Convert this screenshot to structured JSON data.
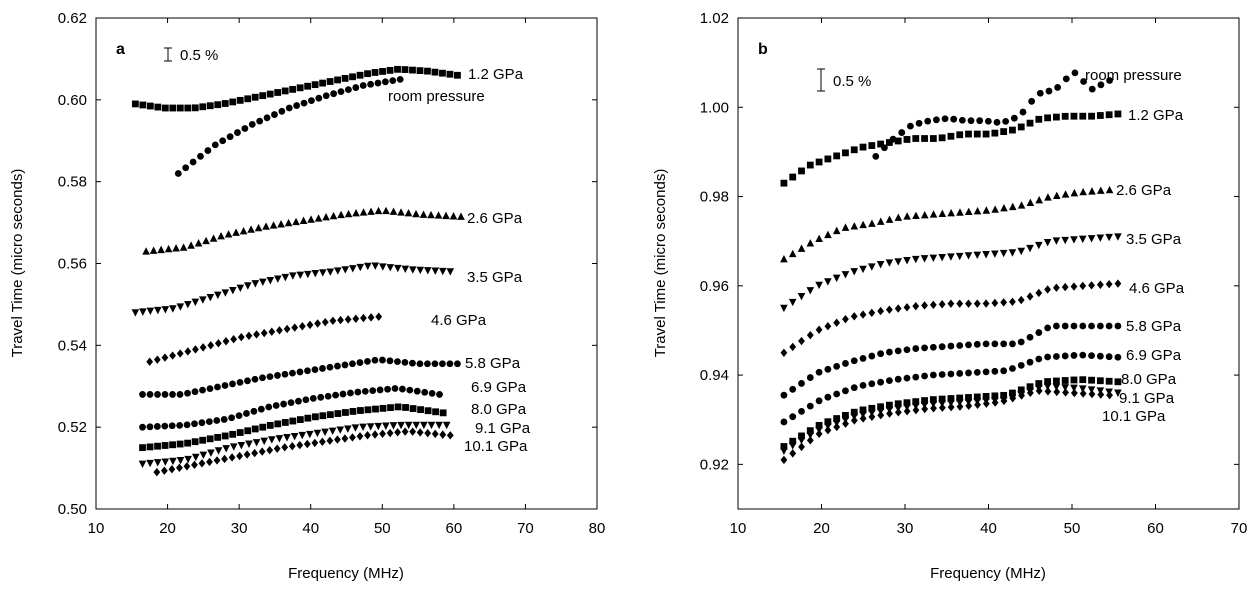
{
  "chart_data": [
    {
      "type": "scatter",
      "panel_label": "a",
      "xlabel": "Frequency (MHz)",
      "ylabel": "Travel Time (micro seconds)",
      "xlim": [
        10,
        80
      ],
      "ylim": [
        0.5,
        0.62
      ],
      "xticks": [
        "10",
        "20",
        "30",
        "40",
        "50",
        "60",
        "70",
        "80"
      ],
      "yticks": [
        "0.50",
        "0.52",
        "0.54",
        "0.56",
        "0.58",
        "0.60",
        "0.62"
      ],
      "scale_bar_label": "0.5 %",
      "series": [
        {
          "name": "1.2 GPa",
          "marker": "square",
          "x0": 15.5,
          "x1": 60.5,
          "y": [
            0.599,
            0.598,
            0.598,
            0.599,
            0.6005,
            0.602,
            0.6035,
            0.605,
            0.6065,
            0.6075,
            0.607,
            0.606
          ]
        },
        {
          "name": "room pressure",
          "marker": "circle",
          "x0": 21.5,
          "x1": 52.5,
          "y": [
            0.582,
            0.589,
            0.594,
            0.598,
            0.601,
            0.6035,
            0.605
          ]
        },
        {
          "name": "2.6 GPa",
          "marker": "triangle-up",
          "x0": 17,
          "x1": 61,
          "y": [
            0.563,
            0.564,
            0.567,
            0.569,
            0.5705,
            0.572,
            0.573,
            0.572,
            0.5715
          ]
        },
        {
          "name": "3.5 GPa",
          "marker": "triangle-down",
          "x0": 15.5,
          "x1": 59.5,
          "y": [
            0.548,
            0.549,
            0.552,
            0.555,
            0.557,
            0.558,
            0.5595,
            0.5585,
            0.558
          ]
        },
        {
          "name": "4.6 GPa",
          "marker": "diamond",
          "x0": 17.5,
          "x1": 49.5,
          "y": [
            0.536,
            0.539,
            0.542,
            0.544,
            0.546,
            0.547
          ]
        },
        {
          "name": "5.8 GPa",
          "marker": "circle",
          "x0": 16.5,
          "x1": 60.5,
          "y": [
            0.528,
            0.528,
            0.53,
            0.532,
            0.5335,
            0.535,
            0.5365,
            0.5355,
            0.5355
          ]
        },
        {
          "name": "6.9 GPa",
          "marker": "circle",
          "x0": 16.5,
          "x1": 58,
          "y": [
            0.52,
            0.5205,
            0.522,
            0.525,
            0.527,
            0.5285,
            0.5295,
            0.528
          ]
        },
        {
          "name": "8.0 GPa",
          "marker": "square",
          "x0": 16.5,
          "x1": 58.5,
          "y": [
            0.515,
            0.516,
            0.518,
            0.5205,
            0.5225,
            0.524,
            0.525,
            0.5235
          ]
        },
        {
          "name": "9.1 GPa",
          "marker": "triangle-down",
          "x0": 16.5,
          "x1": 59,
          "y": [
            0.511,
            0.512,
            0.515,
            0.517,
            0.5185,
            0.52,
            0.5205,
            0.5205
          ]
        },
        {
          "name": "10.1 GPa",
          "marker": "diamond",
          "x0": 18.5,
          "x1": 59.5,
          "y": [
            0.509,
            0.511,
            0.513,
            0.515,
            0.5165,
            0.518,
            0.519,
            0.518
          ]
        }
      ]
    },
    {
      "type": "scatter",
      "panel_label": "b",
      "xlabel": "Frequency (MHz)",
      "ylabel": "Travel Time (micro seconds)",
      "xlim": [
        10,
        70
      ],
      "ylim": [
        0.91,
        1.02
      ],
      "xticks": [
        "10",
        "20",
        "30",
        "40",
        "50",
        "60",
        "70"
      ],
      "yticks": [
        "0.92",
        "0.94",
        "0.96",
        "0.98",
        "1.00",
        "1.02"
      ],
      "scale_bar_label": "0.5 %",
      "series": [
        {
          "name": "room pressure",
          "marker": "circle",
          "x0": 26.5,
          "x1": 54.5,
          "y": [
            0.989,
            0.993,
            0.996,
            0.997,
            0.9975,
            0.997,
            0.997,
            0.9965,
            0.998,
            1.003,
            1.004,
            1.008,
            1.004,
            1.006
          ]
        },
        {
          "name": "1.2 GPa",
          "marker": "square",
          "x0": 15.5,
          "x1": 55.5,
          "y": [
            0.983,
            0.987,
            0.989,
            0.991,
            0.992,
            0.993,
            0.993,
            0.994,
            0.994,
            0.995,
            0.9975,
            0.998,
            0.998,
            0.9985
          ]
        },
        {
          "name": "2.6 GPa",
          "marker": "triangle-up",
          "x0": 15.5,
          "x1": 54.5,
          "y": [
            0.966,
            0.97,
            0.973,
            0.974,
            0.9755,
            0.976,
            0.9765,
            0.977,
            0.978,
            0.98,
            0.981,
            0.9815
          ]
        },
        {
          "name": "3.5 GPa",
          "marker": "triangle-down",
          "x0": 15.5,
          "x1": 55.5,
          "y": [
            0.955,
            0.96,
            0.963,
            0.965,
            0.966,
            0.9665,
            0.967,
            0.9675,
            0.97,
            0.9705,
            0.971
          ]
        },
        {
          "name": "4.6 GPa",
          "marker": "diamond",
          "x0": 15.5,
          "x1": 55.5,
          "y": [
            0.945,
            0.95,
            0.953,
            0.9545,
            0.9555,
            0.956,
            0.956,
            0.9565,
            0.9595,
            0.96,
            0.9605
          ]
        },
        {
          "name": "5.8 GPa",
          "marker": "circle",
          "x0": 15.5,
          "x1": 55.5,
          "y": [
            0.9355,
            0.9405,
            0.943,
            0.945,
            0.946,
            0.9465,
            0.947,
            0.947,
            0.951,
            0.951,
            0.951
          ]
        },
        {
          "name": "6.9 GPa",
          "marker": "circle",
          "x0": 15.5,
          "x1": 55.5,
          "y": [
            0.9295,
            0.9345,
            0.9375,
            0.939,
            0.94,
            0.9405,
            0.941,
            0.944,
            0.9445,
            0.944
          ]
        },
        {
          "name": "8.0 GPa",
          "marker": "square",
          "x0": 15.5,
          "x1": 55.5,
          "y": [
            0.924,
            0.929,
            0.932,
            0.9335,
            0.9345,
            0.935,
            0.9355,
            0.9385,
            0.939,
            0.9385
          ]
        },
        {
          "name": "9.1 GPa",
          "marker": "triangle-down",
          "x0": 15.5,
          "x1": 55.5,
          "y": [
            0.923,
            0.928,
            0.931,
            0.9325,
            0.9335,
            0.934,
            0.9345,
            0.9375,
            0.937,
            0.936
          ]
        },
        {
          "name": "10.1 GPa",
          "marker": "diamond",
          "x0": 15.5,
          "x1": 54.5,
          "y": [
            0.921,
            0.927,
            0.93,
            0.9315,
            0.9325,
            0.933,
            0.934,
            0.9365,
            0.936,
            0.9355
          ]
        }
      ]
    }
  ]
}
